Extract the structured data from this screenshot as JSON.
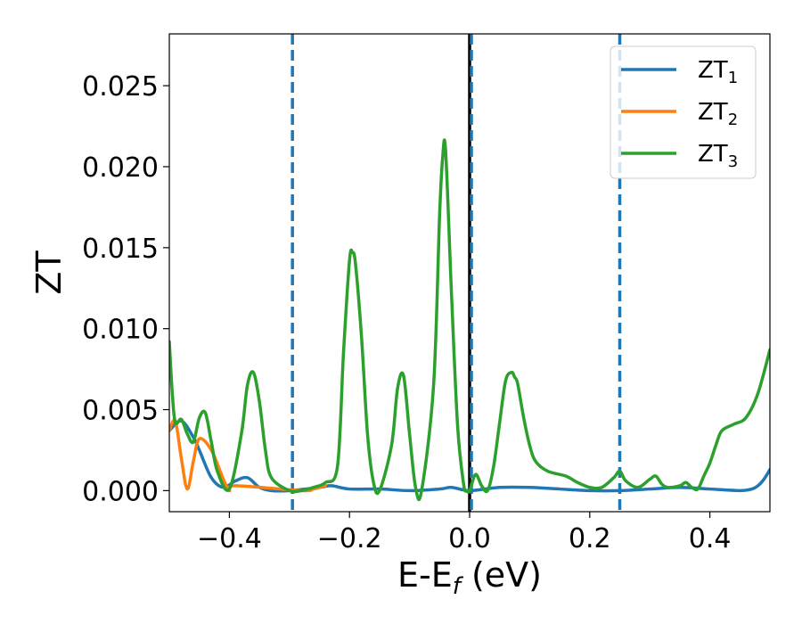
{
  "chart_data": {
    "type": "line",
    "xlabel_main": "E-E",
    "xlabel_sub": "f",
    "xlabel_unit": " (eV)",
    "ylabel": "ZT",
    "xlim": [
      -0.5,
      0.5
    ],
    "ylim": [
      -0.0013,
      0.0282
    ],
    "xticks": [
      -0.4,
      -0.2,
      0.0,
      0.2,
      0.4
    ],
    "xtick_labels": [
      "−0.4",
      "−0.2",
      "0.0",
      "0.2",
      "0.4"
    ],
    "yticks": [
      0.0,
      0.005,
      0.01,
      0.015,
      0.02,
      0.025
    ],
    "ytick_labels": [
      "0.000",
      "0.005",
      "0.010",
      "0.015",
      "0.020",
      "0.025"
    ],
    "grid": false,
    "legend_position": "top-right",
    "vlines": [
      {
        "x": -0.295,
        "style": "dashed",
        "color": "#1f77b4"
      },
      {
        "x": 0.0,
        "style": "solid",
        "color": "#000000"
      },
      {
        "x": 0.003,
        "style": "dashed",
        "color": "#1f77b4"
      },
      {
        "x": 0.25,
        "style": "dashed",
        "color": "#1f77b4"
      }
    ],
    "series": [
      {
        "name": "ZT",
        "sub": "1",
        "color": "#1f77b4",
        "x": [
          -0.5,
          -0.48,
          -0.46,
          -0.45,
          -0.43,
          -0.41,
          -0.39,
          -0.37,
          -0.35,
          -0.33,
          -0.3,
          -0.25,
          -0.23,
          -0.2,
          -0.15,
          -0.1,
          -0.05,
          -0.03,
          0.0,
          0.05,
          0.1,
          0.15,
          0.2,
          0.25,
          0.3,
          0.35,
          0.4,
          0.45,
          0.47,
          0.48,
          0.49,
          0.5
        ],
        "y": [
          0.0037,
          0.0043,
          0.0033,
          0.0025,
          0.0008,
          0.0002,
          0.0006,
          0.0008,
          0.0002,
          0.0,
          0.0,
          0.0002,
          0.0003,
          0.0001,
          0.0001,
          0.0,
          0.0001,
          0.0002,
          0.0,
          0.0002,
          0.0002,
          0.0001,
          0.0,
          0.0,
          0.0001,
          0.0002,
          0.0001,
          0.0,
          0.0001,
          0.0003,
          0.0007,
          0.0013
        ]
      },
      {
        "name": "ZT",
        "sub": "2",
        "color": "#ff7f0e",
        "x": [
          -0.5,
          -0.49,
          -0.48,
          -0.47,
          -0.46,
          -0.45,
          -0.43,
          -0.41,
          -0.4,
          -0.39,
          -0.28,
          -0.26,
          -0.25,
          -0.24
        ],
        "y": [
          0.0037,
          0.0043,
          0.002,
          0.0001,
          0.0018,
          0.0032,
          0.0025,
          0.0007,
          0.0,
          0.0003,
          0.0,
          0.0001,
          0.0002,
          0.0003
        ]
      },
      {
        "name": "ZT",
        "sub": "3",
        "color": "#2ca02c",
        "x": [
          -0.5,
          -0.495,
          -0.49,
          -0.48,
          -0.47,
          -0.46,
          -0.45,
          -0.44,
          -0.43,
          -0.42,
          -0.4,
          -0.38,
          -0.37,
          -0.36,
          -0.35,
          -0.34,
          -0.33,
          -0.3,
          -0.28,
          -0.26,
          -0.24,
          -0.22,
          -0.21,
          -0.2,
          -0.195,
          -0.19,
          -0.18,
          -0.17,
          -0.16,
          -0.15,
          -0.13,
          -0.12,
          -0.11,
          -0.1,
          -0.09,
          -0.08,
          -0.06,
          -0.05,
          -0.045,
          -0.04,
          -0.03,
          -0.02,
          -0.01,
          -0.005,
          0.0,
          0.01,
          0.02,
          0.03,
          0.04,
          0.05,
          0.06,
          0.07,
          0.075,
          0.08,
          0.09,
          0.1,
          0.11,
          0.13,
          0.16,
          0.18,
          0.2,
          0.22,
          0.24,
          0.25,
          0.26,
          0.28,
          0.3,
          0.31,
          0.32,
          0.33,
          0.35,
          0.36,
          0.37,
          0.38,
          0.39,
          0.4,
          0.41,
          0.42,
          0.44,
          0.46,
          0.48,
          0.5
        ],
        "y": [
          0.0092,
          0.006,
          0.0042,
          0.0044,
          0.0035,
          0.003,
          0.0045,
          0.0048,
          0.003,
          0.0012,
          0.0001,
          0.0035,
          0.0065,
          0.0073,
          0.0055,
          0.0025,
          0.0008,
          0.0,
          0.0,
          0.0002,
          0.0005,
          0.0015,
          0.0085,
          0.0142,
          0.0147,
          0.014,
          0.0095,
          0.0035,
          0.0005,
          0.0,
          0.0028,
          0.0063,
          0.0071,
          0.0035,
          0.0002,
          0.0,
          0.0065,
          0.017,
          0.0205,
          0.021,
          0.012,
          0.004,
          0.0004,
          0.0,
          0.0,
          0.001,
          0.0003,
          0.0,
          0.0015,
          0.0042,
          0.0068,
          0.0073,
          0.007,
          0.0066,
          0.0045,
          0.0028,
          0.0018,
          0.0012,
          0.0009,
          0.0005,
          0.0002,
          0.0002,
          0.0008,
          0.0012,
          0.0006,
          0.0002,
          0.0007,
          0.0009,
          0.0004,
          0.0002,
          0.0003,
          0.0005,
          0.0002,
          0.0001,
          0.0009,
          0.0017,
          0.0028,
          0.0037,
          0.0041,
          0.0045,
          0.006,
          0.0087
        ]
      }
    ]
  }
}
